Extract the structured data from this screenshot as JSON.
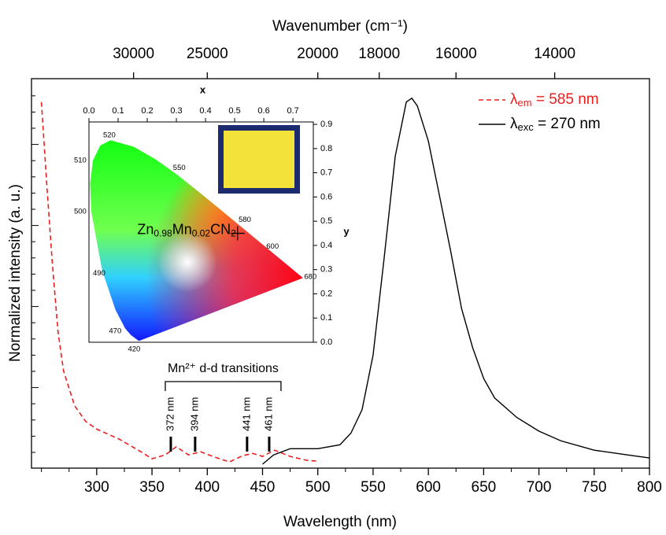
{
  "chart_data": {
    "type": "line",
    "x_label": "Wavelength (nm)",
    "y_label": "Normalized intensity (a. u.)",
    "x2_label": "Wavenumber (cm⁻¹)",
    "xlim": [
      241,
      800
    ],
    "xticks": [
      300,
      350,
      400,
      450,
      500,
      550,
      600,
      650,
      700,
      750,
      800
    ],
    "x2ticks": [
      30000,
      25000,
      20000,
      18000,
      16000,
      14000
    ],
    "ylim": [
      0,
      1
    ],
    "legend": "upper right",
    "series": [
      {
        "name": [
          "λ",
          "em",
          " = 585 nm"
        ],
        "color": "#e8201f",
        "dash": true,
        "x": [
          250,
          255,
          260,
          265,
          270,
          280,
          290,
          300,
          320,
          340,
          350,
          362,
          372,
          383,
          394,
          405,
          420,
          432,
          441,
          450,
          461,
          475,
          490,
          500
        ],
        "values": [
          0.94,
          0.72,
          0.52,
          0.35,
          0.25,
          0.16,
          0.12,
          0.1,
          0.075,
          0.042,
          0.024,
          0.034,
          0.055,
          0.034,
          0.042,
          0.03,
          0.016,
          0.032,
          0.038,
          0.03,
          0.046,
          0.03,
          0.02,
          0.018
        ]
      },
      {
        "name": [
          "λ",
          "exc",
          " = 270 nm"
        ],
        "color": "#000000",
        "dash": false,
        "x": [
          450,
          460,
          475,
          500,
          520,
          530,
          540,
          550,
          560,
          570,
          580,
          585,
          590,
          600,
          610,
          620,
          630,
          640,
          650,
          660,
          680,
          700,
          720,
          750,
          780,
          800
        ],
        "values": [
          0.01,
          0.034,
          0.05,
          0.05,
          0.06,
          0.09,
          0.15,
          0.29,
          0.54,
          0.8,
          0.94,
          0.95,
          0.93,
          0.84,
          0.7,
          0.56,
          0.41,
          0.31,
          0.23,
          0.18,
          0.13,
          0.095,
          0.07,
          0.046,
          0.034,
          0.026
        ]
      }
    ],
    "annotation": {
      "text": "Mn²⁺ d-d transitions",
      "peaks": [
        {
          "value": 372,
          "label": "372 nm"
        },
        {
          "value": 394,
          "label": "394 nm"
        },
        {
          "value": 441,
          "label": "441 nm"
        },
        {
          "value": 461,
          "label": "461 nm"
        }
      ]
    },
    "inset": {
      "x_label": "x",
      "y_label": "y",
      "xlim": [
        0,
        0.77
      ],
      "ylim": [
        0,
        0.91
      ],
      "xticks": [
        {
          "value": 0,
          "label": "0.0"
        },
        0.1,
        0.2,
        0.3,
        0.4,
        0.5,
        0.6,
        0.7
      ],
      "yticks": [
        {
          "value": 0,
          "label": "0.0"
        },
        0.1,
        0.2,
        0.3,
        0.4,
        0.5,
        0.6,
        0.7,
        0.8,
        0.9
      ],
      "locus_labels": [
        {
          "label": "520",
          "x": 0.07,
          "y": 0.855
        },
        {
          "label": "550",
          "x": 0.31,
          "y": 0.72
        },
        {
          "label": "510",
          "x": -0.03,
          "y": 0.75
        },
        {
          "label": "500",
          "x": -0.03,
          "y": 0.54
        },
        {
          "label": "580",
          "x": 0.535,
          "y": 0.505
        },
        {
          "label": "600",
          "x": 0.63,
          "y": 0.395
        },
        {
          "label": "490",
          "x": 0.035,
          "y": 0.285
        },
        {
          "label": "680",
          "x": 0.76,
          "y": 0.27
        },
        {
          "label": "470",
          "x": 0.09,
          "y": 0.045
        },
        {
          "label": "420",
          "x": 0.155,
          "y": -0.03
        }
      ],
      "point": {
        "label": [
          "Zn",
          "0.98",
          "Mn",
          "0.02",
          "CN",
          "2"
        ],
        "x": 0.51,
        "y": 0.45
      }
    }
  }
}
